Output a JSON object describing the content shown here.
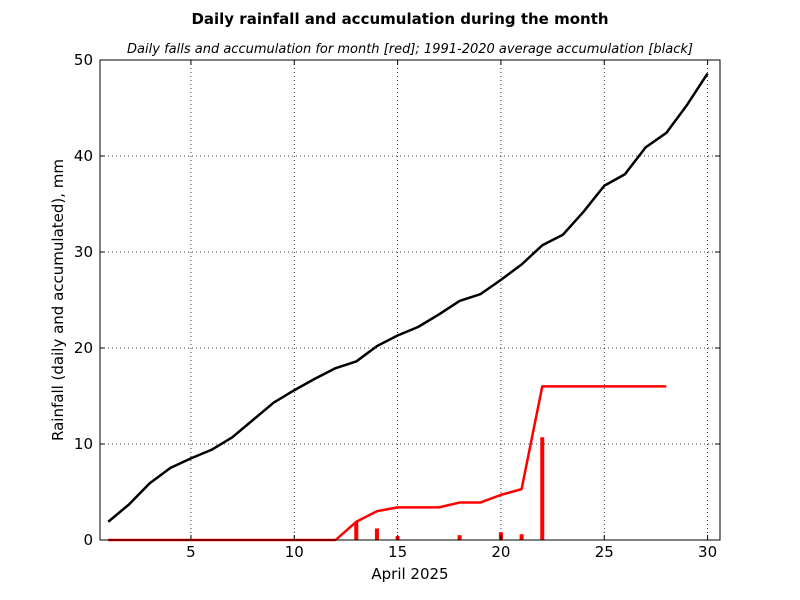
{
  "chart_data": {
    "type": "line",
    "title": "Daily rainfall and accumulation during the month",
    "subtitle": "Daily falls and accumulation for month [red]; 1991-2020 average accumulation [black]",
    "xlabel": "April 2025",
    "ylabel": "Rainfall (daily and accumulated), mm",
    "xlim": [
      0.6,
      30.6
    ],
    "ylim": [
      0,
      50
    ],
    "xticks": [
      5,
      10,
      15,
      20,
      25,
      30
    ],
    "yticks": [
      0,
      10,
      20,
      30,
      40,
      50
    ],
    "grid": true,
    "colors": {
      "month": "#ff0000",
      "average": "#000000"
    },
    "average_accumulation": {
      "x": [
        1,
        2,
        3,
        4,
        5,
        6,
        7,
        8,
        9,
        10,
        11,
        12,
        13,
        14,
        15,
        16,
        17,
        18,
        19,
        20,
        21,
        22,
        23,
        24,
        25,
        26,
        27,
        28,
        29,
        30
      ],
      "values": [
        1.9,
        3.7,
        5.9,
        7.5,
        8.5,
        9.4,
        10.7,
        12.5,
        14.3,
        15.6,
        16.8,
        17.9,
        18.6,
        20.2,
        21.3,
        22.2,
        23.5,
        24.9,
        25.6,
        27.1,
        28.7,
        30.7,
        31.8,
        34.2,
        36.9,
        38.1,
        40.9,
        42.4,
        45.3,
        48.6
      ]
    },
    "month_accumulation": {
      "x": [
        1,
        2,
        3,
        4,
        5,
        6,
        7,
        8,
        9,
        10,
        11,
        12,
        13,
        14,
        15,
        16,
        17,
        18,
        19,
        20,
        21,
        22,
        23,
        24,
        25,
        26,
        27,
        28
      ],
      "values": [
        0,
        0,
        0,
        0,
        0,
        0,
        0,
        0,
        0,
        0,
        0,
        0,
        1.9,
        3.0,
        3.4,
        3.4,
        3.4,
        3.9,
        3.9,
        4.7,
        5.3,
        16.0,
        16.0,
        16.0,
        16.0,
        16.0,
        16.0,
        16.0
      ]
    },
    "daily_falls": {
      "x": [
        13,
        14,
        15,
        18,
        20,
        21,
        22
      ],
      "values": [
        1.9,
        1.2,
        0.4,
        0.5,
        0.8,
        0.6,
        10.7
      ]
    }
  }
}
